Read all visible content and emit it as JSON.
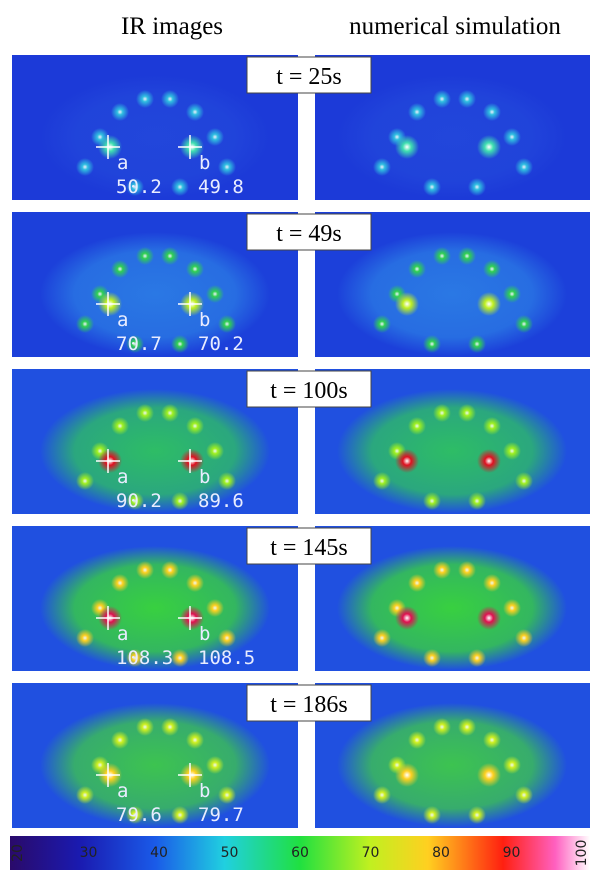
{
  "column_headers": [
    "IR images",
    "numerical simulation"
  ],
  "panels": [
    {
      "time": "t = 25s",
      "points": [
        {
          "label": "a",
          "temperature": 50.2
        },
        {
          "label": "b",
          "temperature": 49.8
        }
      ]
    },
    {
      "time": "t = 49s",
      "points": [
        {
          "label": "a",
          "temperature": 70.7
        },
        {
          "label": "b",
          "temperature": 70.2
        }
      ]
    },
    {
      "time": "t = 100s",
      "points": [
        {
          "label": "a",
          "temperature": 90.2
        },
        {
          "label": "b",
          "temperature": 89.6
        }
      ]
    },
    {
      "time": "t = 145s",
      "points": [
        {
          "label": "a",
          "temperature": 108.3
        },
        {
          "label": "b",
          "temperature": 108.5
        }
      ]
    },
    {
      "time": "t = 186s",
      "points": [
        {
          "label": "a",
          "temperature": 79.6
        },
        {
          "label": "b",
          "temperature": 79.7
        }
      ]
    }
  ],
  "colorbar": {
    "ticks": [
      20,
      30,
      40,
      50,
      60,
      70,
      80,
      90,
      100
    ]
  }
}
